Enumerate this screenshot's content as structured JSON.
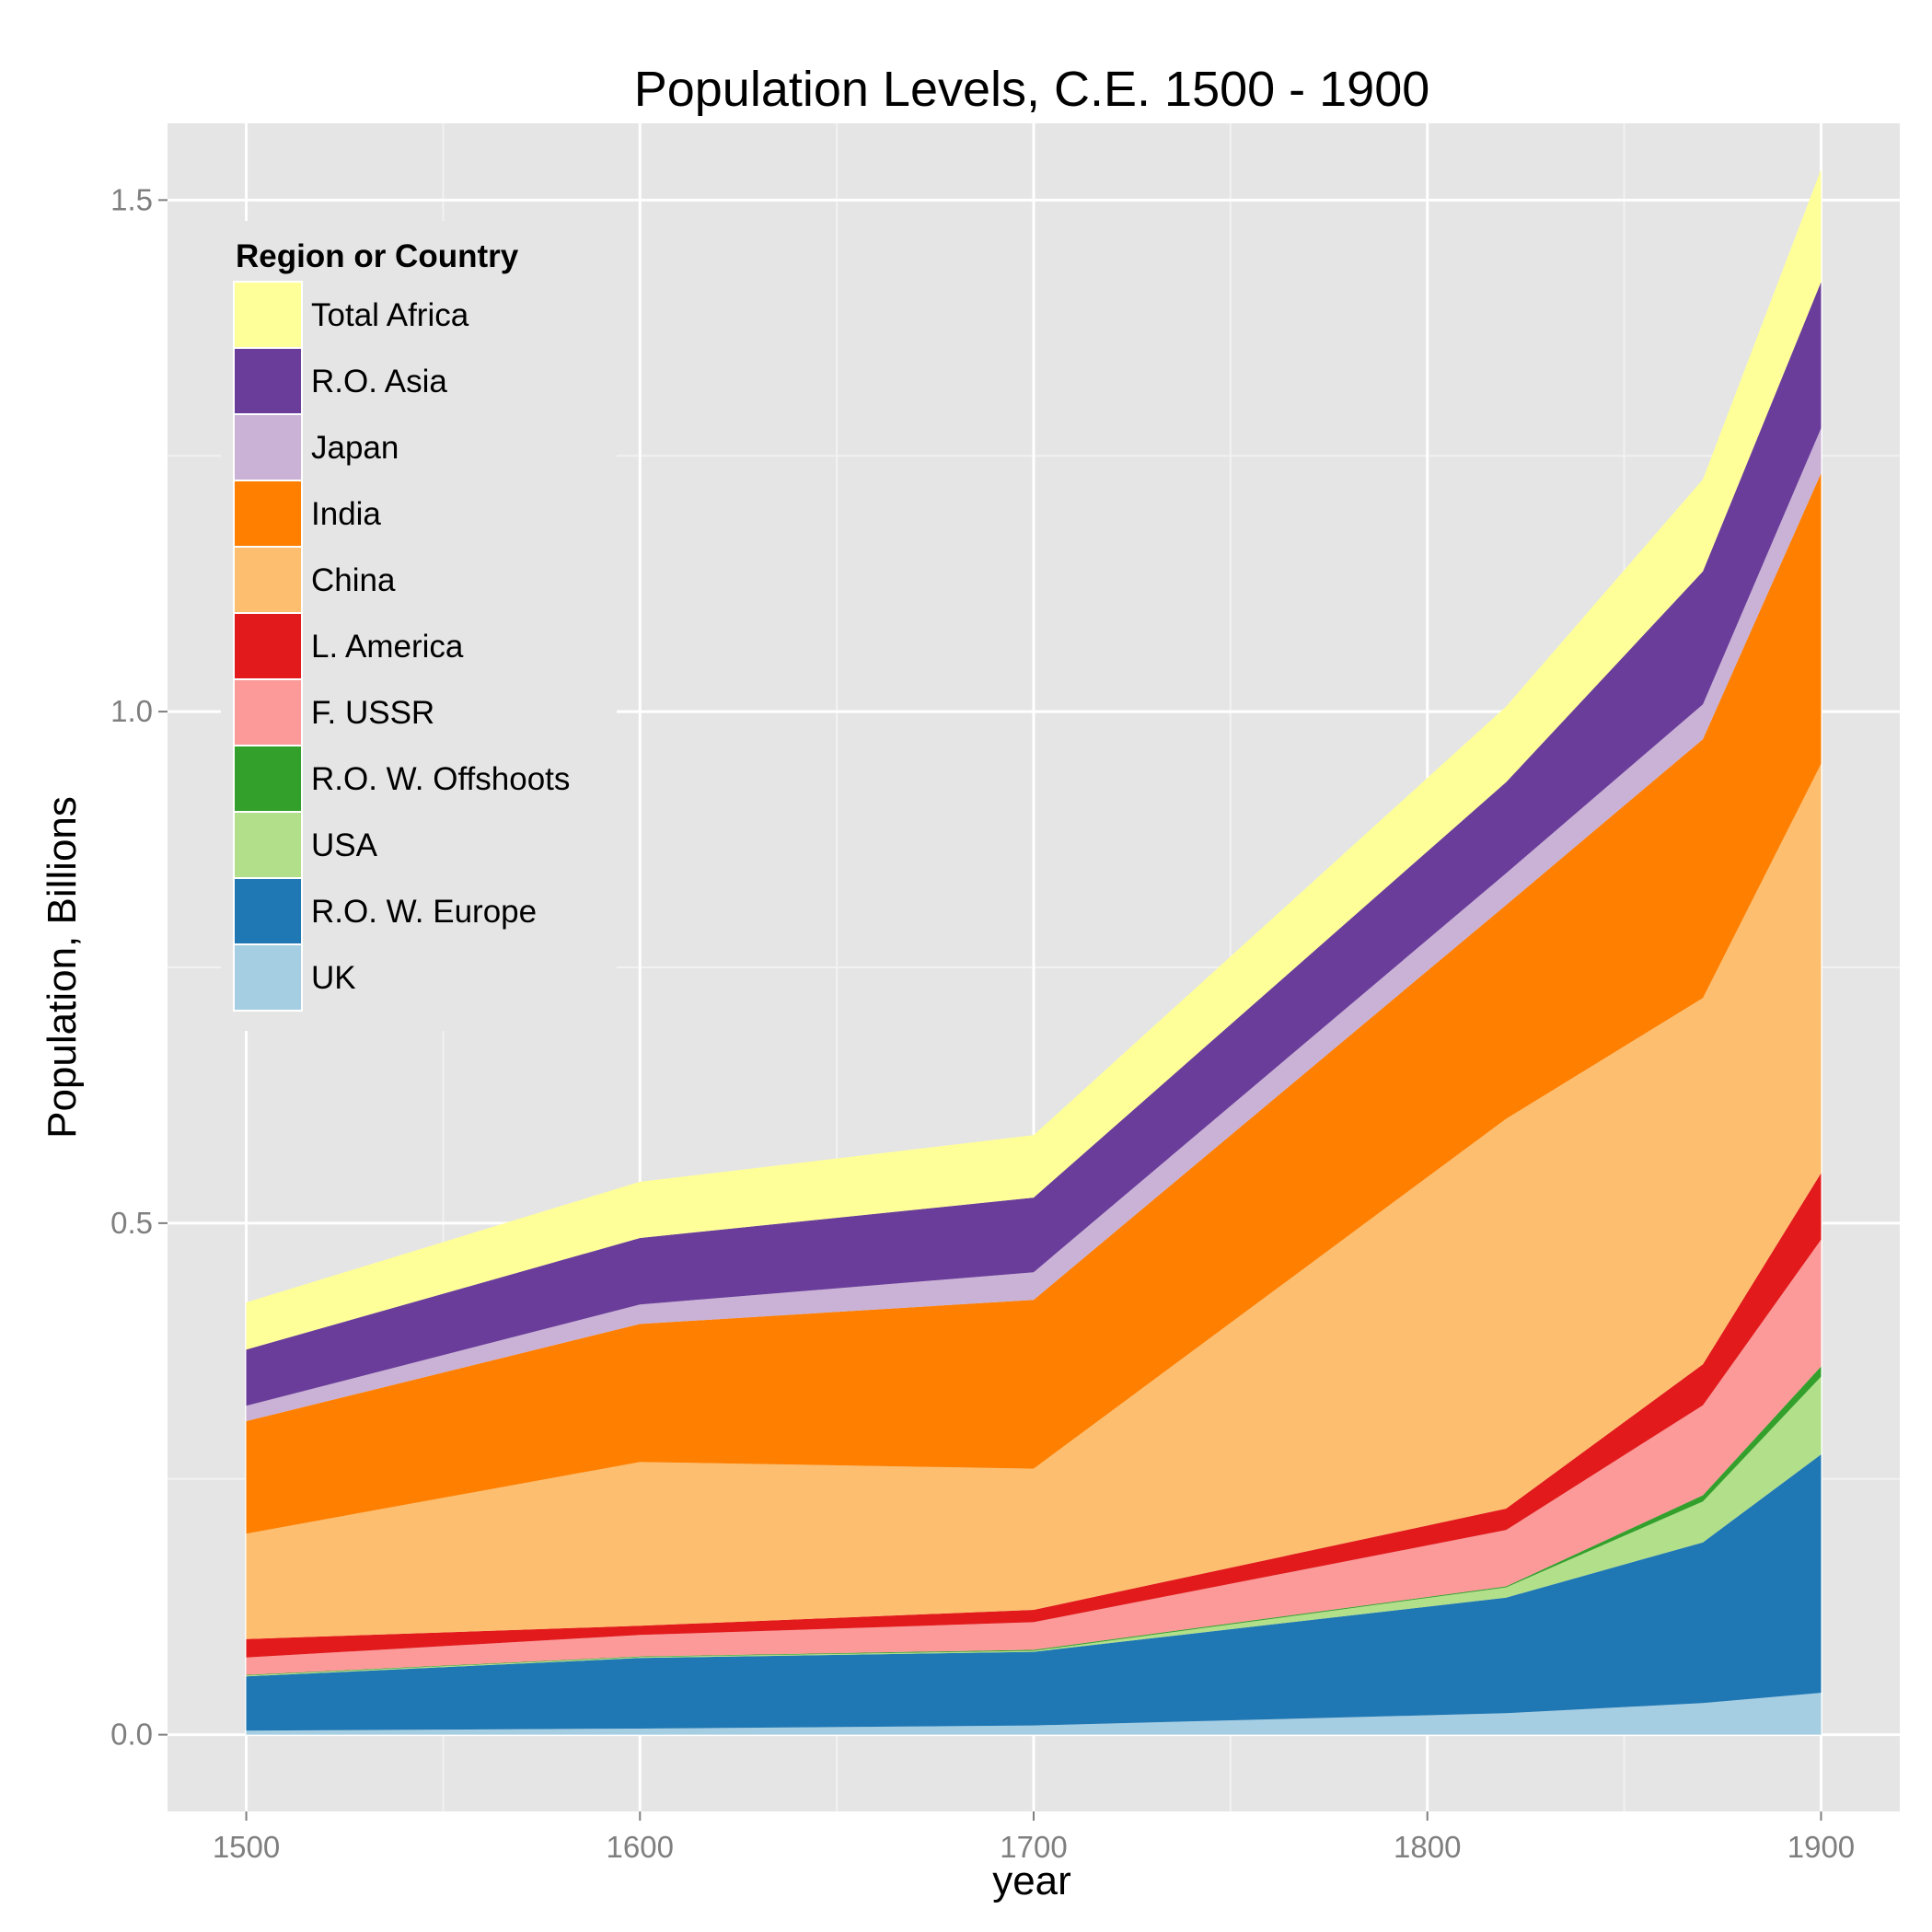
{
  "chart_data": {
    "type": "area",
    "stacked": true,
    "title": "Population Levels, C.E. 1500 - 1900",
    "xlabel": "year",
    "ylabel": "Population, Billions",
    "x": [
      1500,
      1600,
      1700,
      1820,
      1870,
      1900
    ],
    "xlim": [
      1480,
      1920
    ],
    "ylim": [
      -0.075,
      1.575
    ],
    "xticks": [
      1500,
      1600,
      1700,
      1800,
      1900
    ],
    "xtick_labels": [
      "1500",
      "1600",
      "1700",
      "1800",
      "1900"
    ],
    "yticks": [
      0.0,
      0.5,
      1.0,
      1.5
    ],
    "ytick_labels": [
      "0.0",
      "0.5",
      "1.0",
      "1.5"
    ],
    "grid": true,
    "legend": {
      "title": "Region or Country",
      "position": "top-left inside"
    },
    "series": [
      {
        "name": "UK",
        "color": "#A6CEE3",
        "values": [
          0.004,
          0.006,
          0.009,
          0.021,
          0.031,
          0.041
        ]
      },
      {
        "name": "R.O. W. Europe",
        "color": "#1F78B4",
        "values": [
          0.053,
          0.069,
          0.072,
          0.113,
          0.157,
          0.233
        ]
      },
      {
        "name": "USA",
        "color": "#B2DF8A",
        "values": [
          0.001,
          0.001,
          0.001,
          0.01,
          0.04,
          0.076
        ]
      },
      {
        "name": "R.O. W. Offshoots",
        "color": "#33A02C",
        "values": [
          0.0005,
          0.0005,
          0.001,
          0.001,
          0.006,
          0.01
        ]
      },
      {
        "name": "F. USSR",
        "color": "#FB9A99",
        "values": [
          0.017,
          0.021,
          0.027,
          0.055,
          0.088,
          0.124
        ]
      },
      {
        "name": "L. America",
        "color": "#E31A1C",
        "values": [
          0.018,
          0.009,
          0.012,
          0.021,
          0.04,
          0.065
        ]
      },
      {
        "name": "China",
        "color": "#FDBF6F",
        "values": [
          0.103,
          0.16,
          0.138,
          0.381,
          0.358,
          0.4
        ]
      },
      {
        "name": "India",
        "color": "#FF7F00",
        "values": [
          0.11,
          0.135,
          0.165,
          0.209,
          0.253,
          0.284
        ]
      },
      {
        "name": "Japan",
        "color": "#CAB2D6",
        "values": [
          0.015,
          0.019,
          0.027,
          0.031,
          0.034,
          0.044
        ]
      },
      {
        "name": "R.O. Asia",
        "color": "#6A3D9A",
        "values": [
          0.055,
          0.065,
          0.073,
          0.089,
          0.13,
          0.143
        ]
      },
      {
        "name": "Total Africa",
        "color": "#FFFF99",
        "values": [
          0.046,
          0.055,
          0.061,
          0.074,
          0.09,
          0.11
        ]
      }
    ]
  }
}
